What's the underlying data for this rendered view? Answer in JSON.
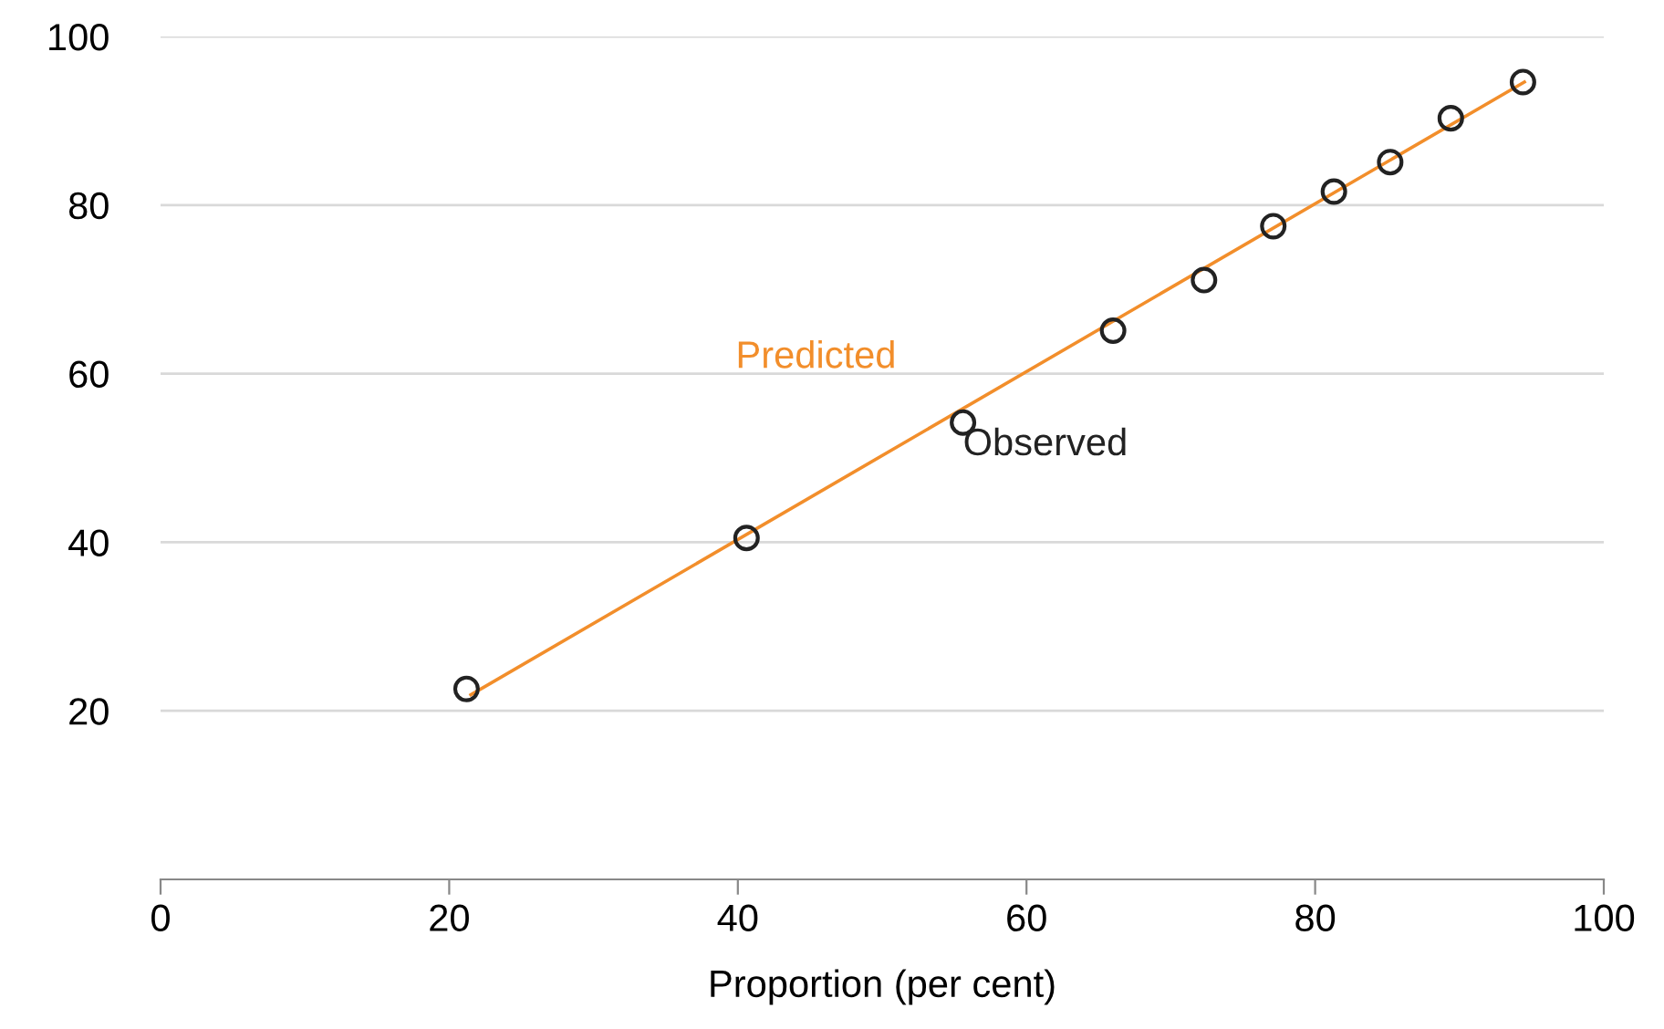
{
  "chart_data": {
    "type": "scatter",
    "xlabel": "Proportion (per cent)",
    "xlim": [
      0,
      100
    ],
    "xticks": [
      0,
      20,
      40,
      60,
      80,
      100
    ],
    "ylim": [
      0,
      100
    ],
    "yticks": [
      20,
      40,
      60,
      80,
      100
    ],
    "grid": "y",
    "legend": false,
    "series": [
      {
        "name": "Predicted",
        "type": "line",
        "color": "#f28e2b",
        "x": [
          21.5,
          94.5
        ],
        "values": [
          21.9,
          94.6
        ]
      },
      {
        "name": "Observed",
        "color": "#222222",
        "marker": "circle",
        "x": [
          21.2,
          40.6,
          55.6,
          66.0,
          72.3,
          77.1,
          81.3,
          85.2,
          89.4,
          94.4
        ],
        "values": [
          22.6,
          40.5,
          54.2,
          65.1,
          71.1,
          77.5,
          81.6,
          85.1,
          90.3,
          94.6
        ]
      }
    ]
  }
}
